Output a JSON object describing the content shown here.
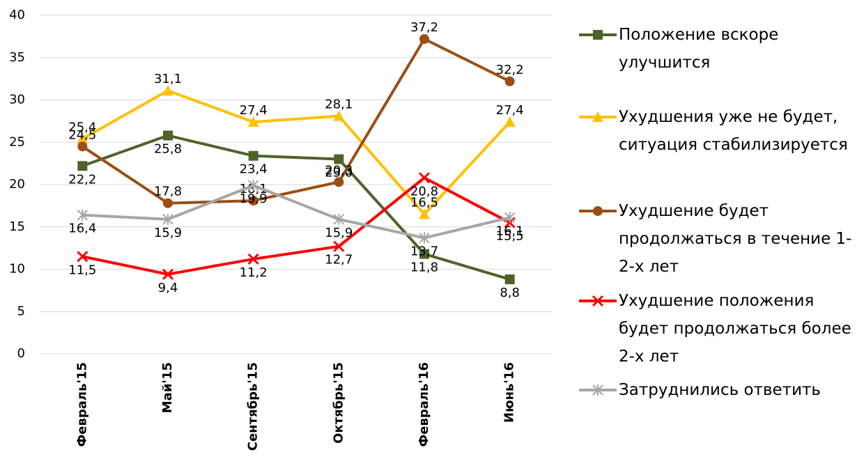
{
  "chart_data": {
    "type": "line",
    "categories": [
      "Февраль'15",
      "Май'15",
      "Сентябрь'15",
      "Октябрь'15",
      "Февраль'16",
      "Июнь'16"
    ],
    "ylim": [
      0,
      40
    ],
    "yticks": [
      0,
      5,
      10,
      15,
      20,
      25,
      30,
      35,
      40
    ],
    "grid": true,
    "legend": "right",
    "series": [
      {
        "name": "Положение вскоре улучшится",
        "color": "#4f6228",
        "marker": "square",
        "values": [
          22.2,
          25.8,
          23.4,
          23.0,
          11.8,
          8.8
        ],
        "value_labels": [
          "22,2",
          "25,8",
          "23,4",
          "23,0",
          "11,8",
          "8,8"
        ]
      },
      {
        "name": "Ухудшения уже не будет, ситуация стабилизируется",
        "color": "#ffc000",
        "marker": "triangle",
        "values": [
          25.4,
          31.1,
          27.4,
          28.1,
          16.5,
          27.4
        ],
        "value_labels": [
          "25,4",
          "31,1",
          "27,4",
          "28,1",
          "16,5",
          "27,4"
        ]
      },
      {
        "name": "Ухудшение будет продолжаться в течение 1-2-х лет",
        "color": "#9c4d14",
        "marker": "circle",
        "values": [
          24.5,
          17.8,
          18.1,
          20.3,
          37.2,
          32.2
        ],
        "value_labels": [
          "24,5",
          "17,8",
          "18,1",
          "20,3",
          "37,2",
          "32,2"
        ]
      },
      {
        "name": "Ухудшение положения будет продолжаться более 2-х лет",
        "color": "#ff0000",
        "marker": "x",
        "values": [
          11.5,
          9.4,
          11.2,
          12.7,
          20.8,
          15.5
        ],
        "value_labels": [
          "11,5",
          "9,4",
          "11,2",
          "12,7",
          "20,8",
          "15,5"
        ]
      },
      {
        "name": "Затруднились ответить",
        "color": "#a6a6a6",
        "marker": "star",
        "values": [
          16.4,
          15.9,
          19.9,
          15.9,
          13.7,
          16.1
        ],
        "value_labels": [
          "16,4",
          "15,9",
          "19,9",
          "15,9",
          "13,7",
          "16,1"
        ]
      }
    ]
  }
}
